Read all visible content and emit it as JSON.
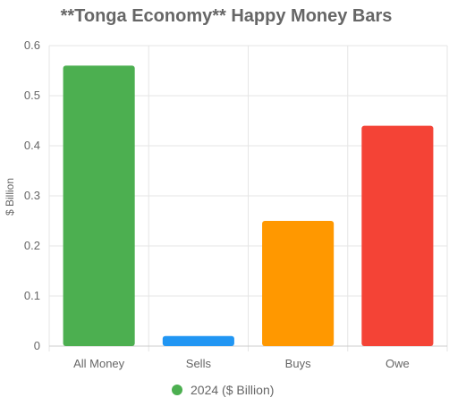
{
  "chart_data": {
    "type": "bar",
    "title": "**Tonga Economy** Happy Money Bars",
    "ylabel": "$ Billion",
    "xlabel": "",
    "categories": [
      "All Money",
      "Sells",
      "Buys",
      "Owe"
    ],
    "series": [
      {
        "name": "2024 ($ Billion)",
        "values": [
          0.56,
          0.02,
          0.25,
          0.44
        ],
        "colors": [
          "#4caf50",
          "#2196f3",
          "#ff9800",
          "#f44336"
        ]
      }
    ],
    "ylim": [
      0,
      0.6
    ],
    "yticks": [
      "0",
      "0.1",
      "0.2",
      "0.3",
      "0.4",
      "0.5",
      "0.6"
    ],
    "grid": true,
    "legend_position": "bottom",
    "legend_color": "#4caf50"
  }
}
